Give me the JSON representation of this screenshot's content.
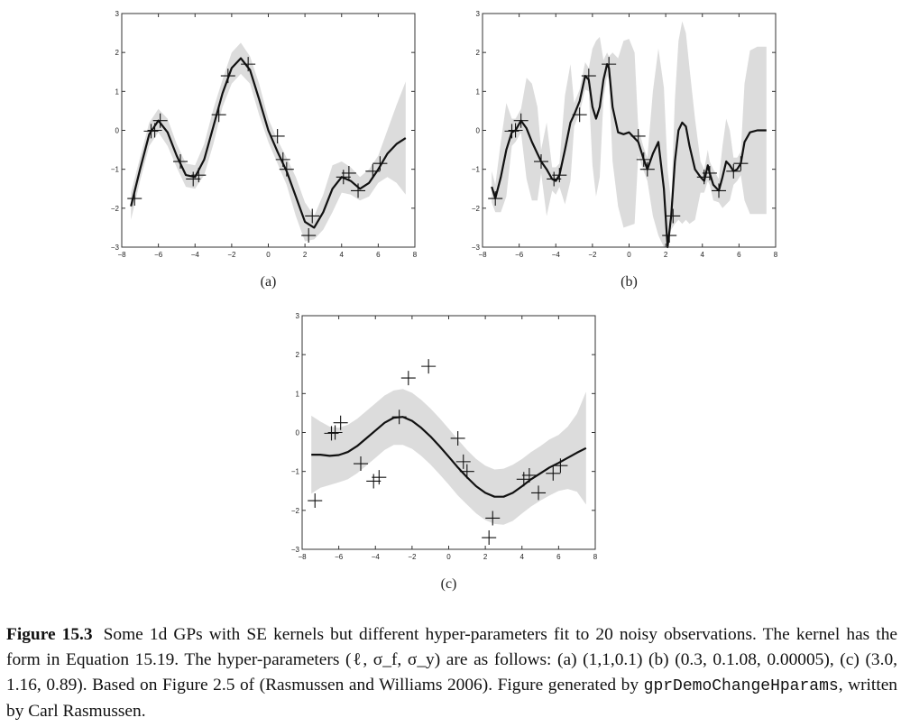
{
  "chart_data": [
    {
      "type": "line",
      "panel_label": "(a)",
      "xlim": [
        -8,
        8
      ],
      "ylim": [
        -3,
        3
      ],
      "xticks": [
        "−8",
        "−6",
        "−4",
        "−2",
        "0",
        "2",
        "4",
        "6",
        "8"
      ],
      "yticks": [
        "−3",
        "−2",
        "−1",
        "0",
        "1",
        "2",
        "3"
      ],
      "grid": false,
      "observations": {
        "x": [
          -7.3,
          -6.4,
          -6.2,
          -5.9,
          -4.8,
          -4.1,
          -3.8,
          -2.7,
          -2.2,
          -1.1,
          0.5,
          0.8,
          1.0,
          2.2,
          2.4,
          4.1,
          4.4,
          4.9,
          5.7,
          6.1
        ],
        "y": [
          -1.75,
          -0.02,
          0.0,
          0.25,
          -0.8,
          -1.25,
          -1.15,
          0.4,
          1.4,
          1.7,
          -0.15,
          -0.75,
          -1.0,
          -2.7,
          -2.2,
          -1.2,
          -1.1,
          -1.55,
          -1.05,
          -0.85
        ]
      },
      "mean": {
        "x": [
          -7.5,
          -7.0,
          -6.5,
          -6.0,
          -5.5,
          -5.0,
          -4.5,
          -4.0,
          -3.5,
          -3.0,
          -2.5,
          -2.0,
          -1.5,
          -1.0,
          -0.5,
          0,
          0.5,
          1.0,
          1.5,
          2.0,
          2.5,
          3.0,
          3.5,
          4.0,
          4.5,
          5.0,
          5.5,
          6.0,
          6.5,
          7.0,
          7.5
        ],
        "y": [
          -1.95,
          -1.0,
          -0.1,
          0.25,
          -0.05,
          -0.65,
          -1.15,
          -1.2,
          -0.75,
          0.1,
          0.95,
          1.6,
          1.85,
          1.55,
          0.8,
          0.0,
          -0.55,
          -1.05,
          -1.7,
          -2.35,
          -2.5,
          -2.1,
          -1.5,
          -1.2,
          -1.3,
          -1.5,
          -1.35,
          -1.0,
          -0.6,
          -0.35,
          -0.2
        ]
      },
      "band_halfwidth": [
        0.35,
        0.3,
        0.3,
        0.3,
        0.35,
        0.3,
        0.3,
        0.3,
        0.4,
        0.45,
        0.35,
        0.4,
        0.4,
        0.35,
        0.4,
        0.3,
        0.3,
        0.35,
        0.5,
        0.5,
        0.3,
        0.45,
        0.6,
        0.4,
        0.35,
        0.3,
        0.35,
        0.35,
        0.6,
        1.0,
        1.45
      ]
    },
    {
      "type": "line",
      "panel_label": "(b)",
      "xlim": [
        -8,
        8
      ],
      "ylim": [
        -3,
        3
      ],
      "xticks": [
        "−8",
        "−6",
        "−4",
        "−2",
        "0",
        "2",
        "4",
        "6",
        "8"
      ],
      "yticks": [
        "−3",
        "−2",
        "−1",
        "0",
        "1",
        "2",
        "3"
      ],
      "grid": false,
      "observations": {
        "x": [
          -7.3,
          -6.4,
          -6.2,
          -5.9,
          -4.8,
          -4.1,
          -3.8,
          -2.7,
          -2.2,
          -1.1,
          0.5,
          0.8,
          1.0,
          2.2,
          2.4,
          4.1,
          4.4,
          4.9,
          5.7,
          6.1
        ],
        "y": [
          -1.75,
          -0.02,
          0.0,
          0.25,
          -0.8,
          -1.25,
          -1.15,
          0.4,
          1.4,
          1.7,
          -0.15,
          -0.75,
          -1.0,
          -2.7,
          -2.2,
          -1.2,
          -1.1,
          -1.55,
          -1.05,
          -0.85
        ]
      },
      "mean": {
        "x": [
          -7.5,
          -7.3,
          -7.0,
          -6.7,
          -6.4,
          -6.2,
          -5.9,
          -5.6,
          -5.3,
          -5.0,
          -4.8,
          -4.5,
          -4.2,
          -4.0,
          -3.8,
          -3.5,
          -3.2,
          -3.0,
          -2.7,
          -2.4,
          -2.2,
          -2.0,
          -1.8,
          -1.6,
          -1.4,
          -1.2,
          -1.1,
          -0.9,
          -0.6,
          -0.3,
          0,
          0.3,
          0.5,
          0.8,
          1.0,
          1.3,
          1.6,
          1.9,
          2.1,
          2.3,
          2.5,
          2.7,
          2.9,
          3.1,
          3.3,
          3.6,
          3.9,
          4.1,
          4.3,
          4.4,
          4.6,
          4.9,
          5.1,
          5.3,
          5.5,
          5.7,
          5.9,
          6.1,
          6.3,
          6.6,
          7.0,
          7.5
        ],
        "y": [
          -1.45,
          -1.75,
          -1.2,
          -0.5,
          -0.05,
          0.0,
          0.25,
          0.05,
          -0.3,
          -0.6,
          -0.8,
          -1.0,
          -1.25,
          -1.3,
          -1.15,
          -0.5,
          0.2,
          0.4,
          0.75,
          1.4,
          1.3,
          0.6,
          0.3,
          0.6,
          1.3,
          1.7,
          1.6,
          0.6,
          -0.05,
          -0.1,
          -0.05,
          -0.2,
          -0.3,
          -0.75,
          -1.0,
          -0.6,
          -0.3,
          -1.5,
          -3.0,
          -2.2,
          -0.8,
          0.0,
          0.2,
          0.1,
          -0.4,
          -1.0,
          -1.2,
          -1.3,
          -0.9,
          -1.1,
          -1.4,
          -1.55,
          -1.2,
          -0.8,
          -0.9,
          -1.05,
          -1.0,
          -0.85,
          -0.3,
          -0.05,
          0.0,
          0.0
        ]
      },
      "band_halfwidth": [
        0.4,
        0.35,
        0.9,
        1.2,
        0.35,
        0.3,
        0.3,
        1.3,
        1.5,
        1.2,
        0.3,
        1.2,
        0.3,
        0.35,
        0.3,
        1.4,
        1.5,
        0.3,
        0.3,
        0.35,
        0.3,
        1.5,
        2.0,
        1.8,
        0.5,
        0.3,
        0.3,
        1.4,
        1.9,
        2.4,
        2.4,
        2.2,
        0.35,
        0.3,
        0.3,
        1.6,
        2.4,
        2.6,
        2.0,
        0.35,
        1.6,
        2.3,
        2.6,
        2.4,
        2.0,
        1.3,
        0.4,
        0.3,
        0.4,
        0.3,
        0.4,
        0.3,
        0.8,
        1.1,
        0.9,
        0.35,
        0.3,
        0.3,
        1.5,
        2.1,
        2.15,
        2.15
      ]
    },
    {
      "type": "line",
      "panel_label": "(c)",
      "xlim": [
        -8,
        8
      ],
      "ylim": [
        -3,
        3
      ],
      "xticks": [
        "−8",
        "−6",
        "−4",
        "−2",
        "0",
        "2",
        "4",
        "6",
        "8"
      ],
      "yticks": [
        "−3",
        "−2",
        "−1",
        "0",
        "1",
        "2",
        "3"
      ],
      "grid": false,
      "observations": {
        "x": [
          -7.3,
          -6.4,
          -6.2,
          -5.9,
          -4.8,
          -4.1,
          -3.8,
          -2.7,
          -2.2,
          -1.1,
          0.5,
          0.8,
          1.0,
          2.2,
          2.4,
          4.1,
          4.4,
          4.9,
          5.7,
          6.1
        ],
        "y": [
          -1.75,
          -0.02,
          0.0,
          0.25,
          -0.8,
          -1.25,
          -1.15,
          0.4,
          1.4,
          1.7,
          -0.15,
          -0.75,
          -1.0,
          -2.7,
          -2.2,
          -1.2,
          -1.1,
          -1.55,
          -1.05,
          -0.85
        ]
      },
      "mean": {
        "x": [
          -7.5,
          -7.0,
          -6.5,
          -6.0,
          -5.5,
          -5.0,
          -4.5,
          -4.0,
          -3.5,
          -3.0,
          -2.5,
          -2.0,
          -1.5,
          -1.0,
          -0.5,
          0,
          0.5,
          1.0,
          1.5,
          2.0,
          2.5,
          3.0,
          3.5,
          4.0,
          4.5,
          5.0,
          5.5,
          6.0,
          6.5,
          7.0,
          7.5
        ],
        "y": [
          -0.57,
          -0.57,
          -0.6,
          -0.58,
          -0.5,
          -0.35,
          -0.15,
          0.05,
          0.25,
          0.38,
          0.4,
          0.3,
          0.12,
          -0.1,
          -0.35,
          -0.62,
          -0.9,
          -1.15,
          -1.38,
          -1.55,
          -1.65,
          -1.65,
          -1.55,
          -1.38,
          -1.2,
          -1.05,
          -0.9,
          -0.78,
          -0.65,
          -0.52,
          -0.4
        ]
      },
      "band_halfwidth": [
        1.0,
        0.85,
        0.75,
        0.7,
        0.7,
        0.7,
        0.7,
        0.7,
        0.7,
        0.7,
        0.72,
        0.72,
        0.72,
        0.72,
        0.72,
        0.72,
        0.72,
        0.7,
        0.7,
        0.7,
        0.7,
        0.72,
        0.72,
        0.7,
        0.7,
        0.7,
        0.72,
        0.72,
        0.8,
        1.0,
        1.45
      ]
    }
  ],
  "caption": {
    "figure_number": "Figure 15.3",
    "text_before_code": "Some 1d GPs with SE kernels but different hyper-parameters fit to 20 noisy observations. The kernel has the form in Equation 15.19. The hyper-parameters (ℓ, σ_f, σ_y) are as follows: (a) (1,1,0.1) (b) (0.3, 0.1.08, 0.00005), (c) (3.0, 1.16, 0.89). Based on Figure 2.5 of (Rasmussen and Williams 2006). Figure generated by",
    "code": "gprDemoChangeHparams",
    "text_after_code": ", written by Carl Rasmussen."
  },
  "colors": {
    "band": "#dcdcdc",
    "mean": "#111111",
    "markers": "#111111",
    "axes": "#333333"
  }
}
